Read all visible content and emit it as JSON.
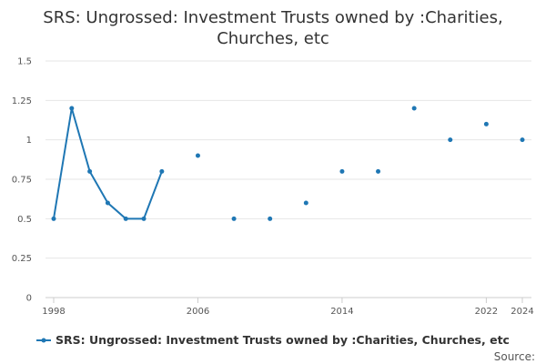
{
  "chart_data": {
    "type": "line",
    "title_line1": "SRS: Ungrossed: Investment Trusts owned by :Charities,",
    "title_line2": "Churches, etc",
    "xlabel": "",
    "ylabel": "",
    "xlim": [
      1998,
      2024
    ],
    "ylim": [
      0,
      1.5
    ],
    "x_ticks": [
      1998,
      2006,
      2014,
      2022,
      2024
    ],
    "y_ticks": [
      {
        "value": 0,
        "label": "0"
      },
      {
        "value": 0.25,
        "label": "0.25"
      },
      {
        "value": 0.5,
        "label": "0.5"
      },
      {
        "value": 0.75,
        "label": "0.75"
      },
      {
        "value": 1,
        "label": "1"
      },
      {
        "value": 1.25,
        "label": "1.25"
      },
      {
        "value": 1.5,
        "label": "1.5"
      }
    ],
    "grid": "horizontal",
    "legend_position": "bottom",
    "series": [
      {
        "name": "SRS: Ungrossed: Investment Trusts owned by :Charities, Churches, etc",
        "color": "#1f77b4",
        "points": [
          {
            "x": 1998,
            "y": 0.5
          },
          {
            "x": 1999,
            "y": 1.2
          },
          {
            "x": 2000,
            "y": 0.8
          },
          {
            "x": 2001,
            "y": 0.6
          },
          {
            "x": 2002,
            "y": 0.5
          },
          {
            "x": 2003,
            "y": 0.5
          },
          {
            "x": 2004,
            "y": 0.8
          },
          {
            "x": 2006,
            "y": 0.9
          },
          {
            "x": 2008,
            "y": 0.5
          },
          {
            "x": 2010,
            "y": 0.5
          },
          {
            "x": 2012,
            "y": 0.6
          },
          {
            "x": 2014,
            "y": 0.8
          },
          {
            "x": 2016,
            "y": 0.8
          },
          {
            "x": 2018,
            "y": 1.2
          },
          {
            "x": 2020,
            "y": 1.0
          },
          {
            "x": 2022,
            "y": 1.1
          },
          {
            "x": 2024,
            "y": 1.0
          }
        ]
      }
    ]
  },
  "source_label": "Source:"
}
